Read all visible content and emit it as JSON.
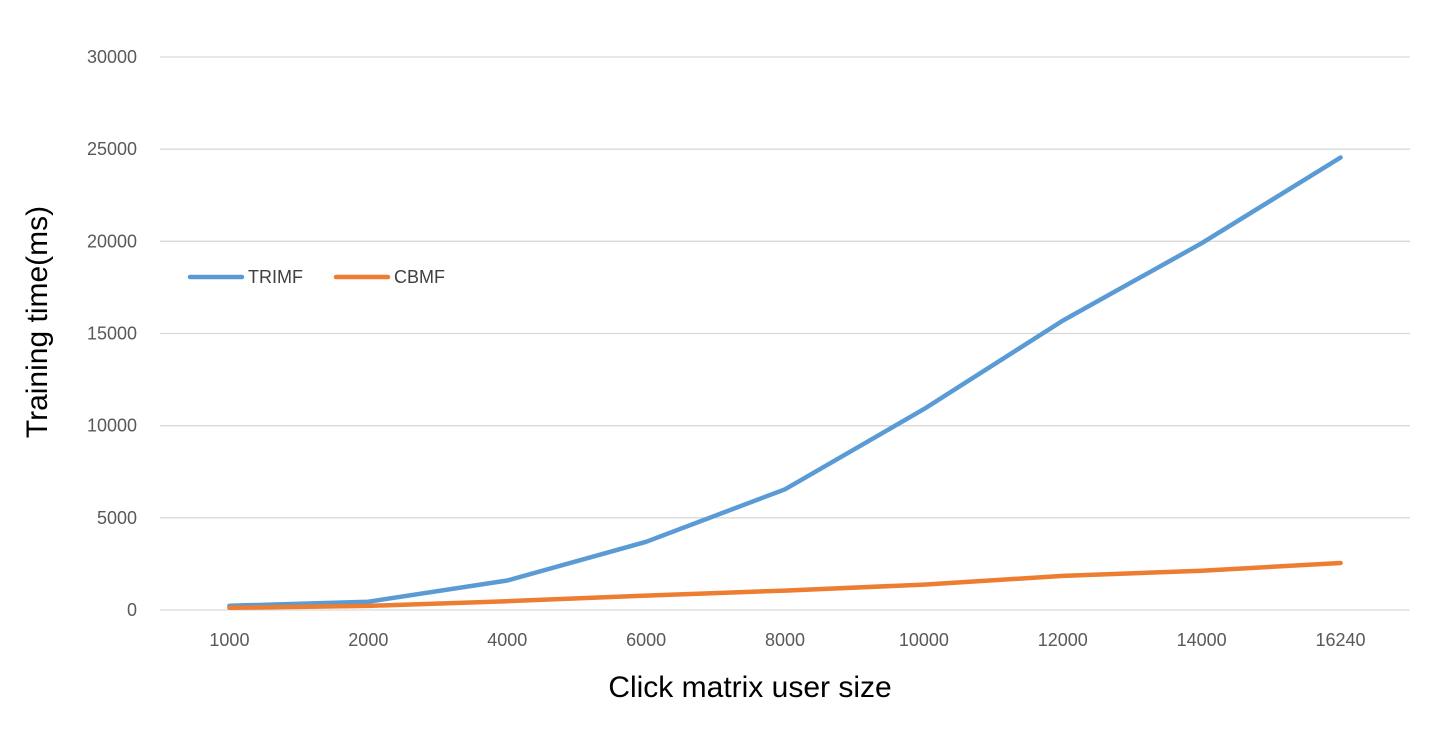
{
  "chart_data": {
    "type": "line",
    "categories": [
      "1000",
      "2000",
      "4000",
      "6000",
      "8000",
      "10000",
      "12000",
      "14000",
      "16240"
    ],
    "series": [
      {
        "name": "TRIMF",
        "color": "#5B9BD5",
        "values": [
          230,
          450,
          1600,
          3700,
          6550,
          10900,
          15700,
          19900,
          24550
        ]
      },
      {
        "name": "CBMF",
        "color": "#ED7D31",
        "values": [
          120,
          220,
          480,
          780,
          1050,
          1380,
          1850,
          2130,
          2550
        ]
      }
    ],
    "yticks": [
      "0",
      "5000",
      "10000",
      "15000",
      "20000",
      "25000",
      "30000"
    ],
    "ylim": [
      0,
      30000
    ],
    "xlabel": "Click matrix user size",
    "ylabel": "Training time(ms)",
    "grid": true,
    "legend_position": "upper-left"
  }
}
